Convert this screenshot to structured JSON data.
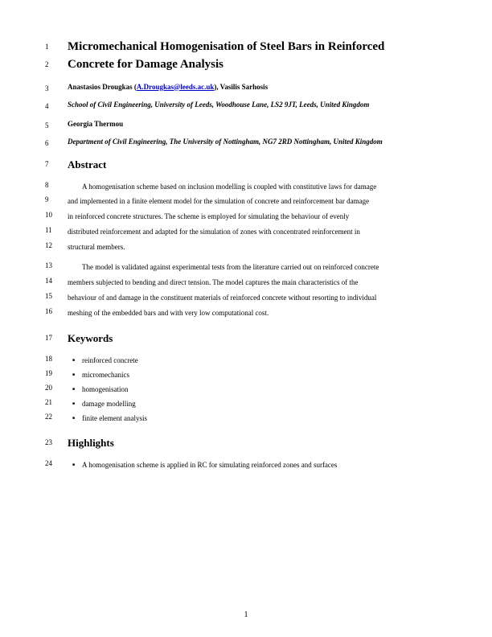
{
  "title_lines": [
    {
      "num": "1",
      "text": "Micromechanical Homogenisation of Steel Bars in Reinforced"
    },
    {
      "num": "2",
      "text": "Concrete for Damage Analysis"
    }
  ],
  "author_blocks": [
    {
      "num": "3",
      "type": "author",
      "prefix": "Anastasios Drougkas (",
      "link": "A.Drougkas@leeds.ac.uk",
      "suffix": "), Vasilis Sarhosis"
    },
    {
      "num": "4",
      "type": "affil",
      "text": "School of Civil Engineering, University of Leeds, Woodhouse Lane, LS2 9JT, Leeds, United Kingdom"
    },
    {
      "num": "5",
      "type": "author",
      "text": "Georgia Thermou"
    },
    {
      "num": "6",
      "type": "affil",
      "text": "Department of Civil Engineering, The University of Nottingham, NG7 2RD Nottingham, United Kingdom"
    }
  ],
  "abstract": {
    "num": "7",
    "heading": "Abstract",
    "para1": [
      {
        "num": "8",
        "text": "A homogenisation scheme based on inclusion modelling is coupled with constitutive laws for damage"
      },
      {
        "num": "9",
        "text": "and implemented in a finite element model for the simulation of concrete and reinforcement bar damage"
      },
      {
        "num": "10",
        "text": "in reinforced concrete structures. The scheme is employed for simulating the behaviour of evenly"
      },
      {
        "num": "11",
        "text": "distributed reinforcement and adapted for the simulation of zones with concentrated reinforcement in"
      },
      {
        "num": "12",
        "text": "structural members."
      }
    ],
    "para2": [
      {
        "num": "13",
        "text": "The model is validated against experimental tests from the literature carried out on reinforced concrete"
      },
      {
        "num": "14",
        "text": "members subjected to bending and direct tension. The model captures the main characteristics of the"
      },
      {
        "num": "15",
        "text": "behaviour of and damage in the constituent materials of reinforced concrete without resorting to individual"
      },
      {
        "num": "16",
        "text": "meshing of the embedded bars and with very low computational cost."
      }
    ]
  },
  "keywords": {
    "num": "17",
    "heading": "Keywords",
    "items": [
      {
        "num": "18",
        "text": "reinforced concrete"
      },
      {
        "num": "19",
        "text": "micromechanics"
      },
      {
        "num": "20",
        "text": "homogenisation"
      },
      {
        "num": "21",
        "text": "damage modelling"
      },
      {
        "num": "22",
        "text": "finite element analysis"
      }
    ]
  },
  "highlights": {
    "num": "23",
    "heading": "Highlights",
    "items": [
      {
        "num": "24",
        "text": "A homogenisation scheme is applied in RC for simulating reinforced zones and surfaces"
      }
    ]
  },
  "page_number": "1"
}
